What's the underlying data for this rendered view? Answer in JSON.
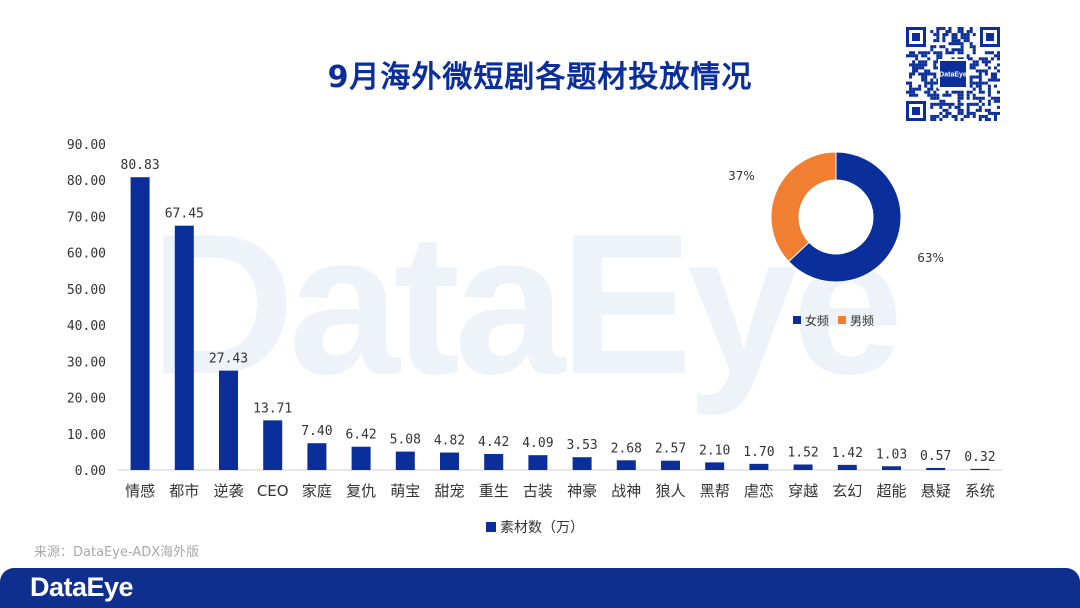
{
  "title": "9月海外微短剧各题材投放情况",
  "watermark": "DataEye",
  "qr_logo": "DataEye",
  "source": "来源：DataEye-ADX海外版",
  "footer_logo": "DataEye",
  "colors": {
    "bar": "#0b2f9a",
    "female": "#0b2f9a",
    "male": "#f07f32",
    "title": "#0b2f9a"
  },
  "chart_data": [
    {
      "type": "bar",
      "categories": [
        "情感",
        "都市",
        "逆袭",
        "CEO",
        "家庭",
        "复仇",
        "萌宝",
        "甜宠",
        "重生",
        "古装",
        "神豪",
        "战神",
        "狼人",
        "黑帮",
        "虐恋",
        "穿越",
        "玄幻",
        "超能",
        "悬疑",
        "系统"
      ],
      "series": [
        {
          "name": "素材数（万）",
          "values": [
            80.83,
            67.45,
            27.43,
            13.71,
            7.4,
            6.42,
            5.08,
            4.82,
            4.42,
            4.09,
            3.53,
            2.68,
            2.57,
            2.1,
            1.7,
            1.52,
            1.42,
            1.03,
            0.57,
            0.32
          ]
        }
      ],
      "value_labels": [
        "80.83",
        "67.45",
        "27.43",
        "13.71",
        "7.40",
        "6.42",
        "5.08",
        "4.82",
        "4.42",
        "4.09",
        "3.53",
        "2.68",
        "2.57",
        "2.10",
        "1.70",
        "1.52",
        "1.42",
        "1.03",
        "0.57",
        "0.32"
      ],
      "yticks": [
        "0.00",
        "10.00",
        "20.00",
        "30.00",
        "40.00",
        "50.00",
        "60.00",
        "70.00",
        "80.00",
        "90.00"
      ],
      "ylim": [
        0,
        90
      ],
      "grid": false,
      "legend": "bottom"
    },
    {
      "type": "pie",
      "donut": true,
      "labels": [
        "女频",
        "男频"
      ],
      "values": [
        63,
        37
      ],
      "value_labels": [
        "63%",
        "37%"
      ],
      "legend": "bottom"
    }
  ]
}
